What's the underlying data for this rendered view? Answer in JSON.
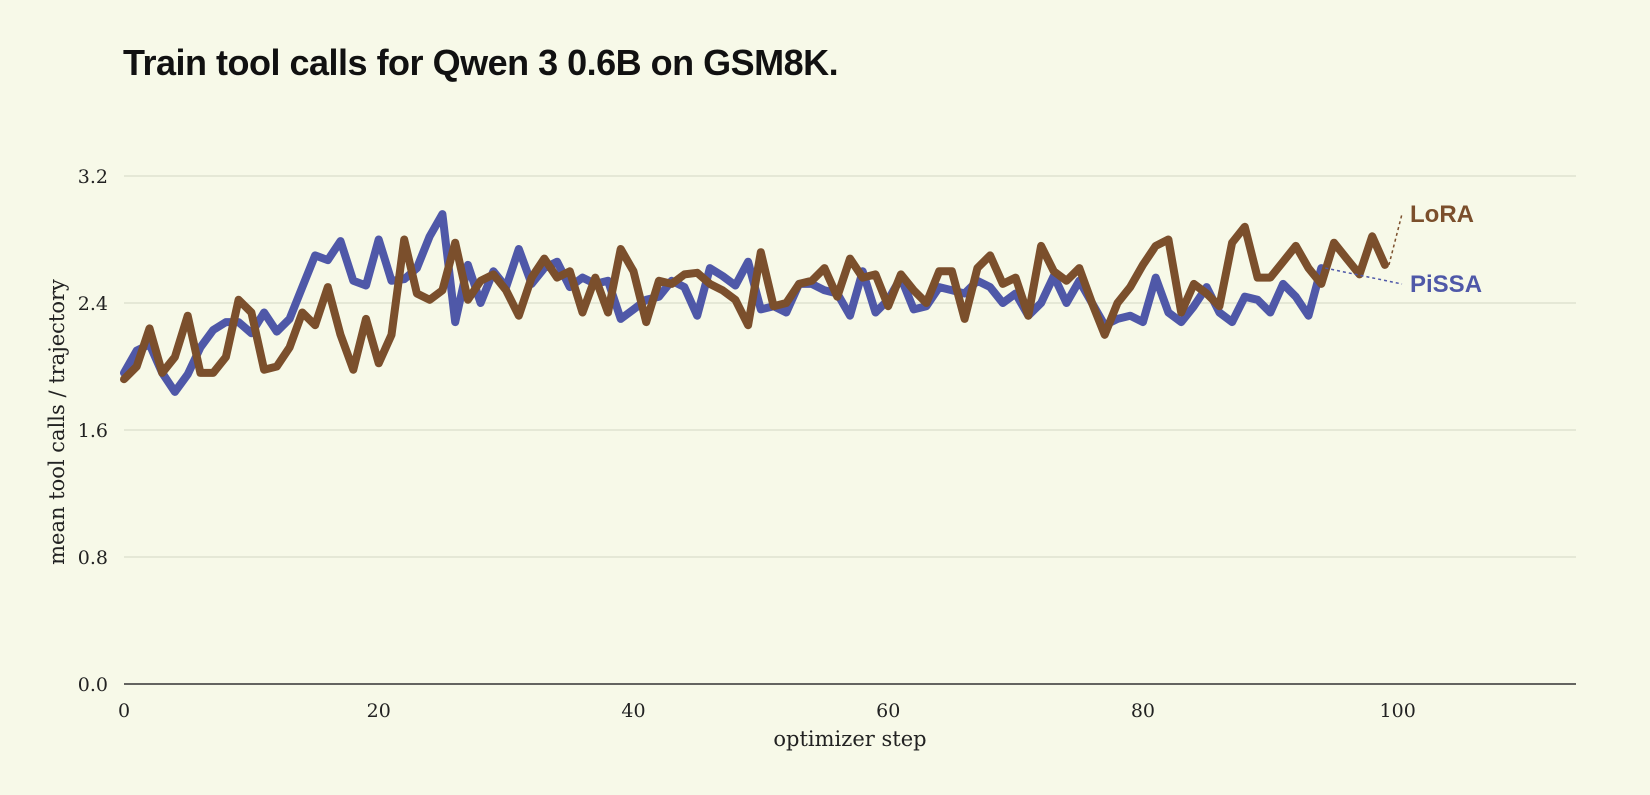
{
  "chart_data": {
    "type": "line",
    "title": "Train tool calls for Qwen 3 0.6B on GSM8K.",
    "xlabel": "optimizer step",
    "ylabel": "mean tool calls / trajectory",
    "xlim": [
      0,
      114
    ],
    "ylim": [
      0,
      3.2
    ],
    "xticks": [
      0,
      20,
      40,
      60,
      80,
      100
    ],
    "xtick_labels": [
      "0",
      "20",
      "40",
      "60",
      "80",
      "100"
    ],
    "yticks": [
      0,
      0.8,
      1.6,
      2.4,
      3.2
    ],
    "ytick_labels": [
      "0.0",
      "0.8",
      "1.6",
      "2.4",
      "3.2"
    ],
    "grid": true,
    "legend": "inline-right",
    "series": [
      {
        "name": "PiSSA",
        "color": "#4f58a8",
        "x": [
          0,
          1,
          2,
          3,
          4,
          5,
          6,
          7,
          8,
          9,
          10,
          11,
          12,
          13,
          14,
          15,
          16,
          17,
          18,
          19,
          20,
          21,
          22,
          23,
          24,
          25,
          26,
          27,
          28,
          29,
          30,
          31,
          32,
          33,
          34,
          35,
          36,
          37,
          38,
          39,
          40,
          41,
          42,
          43,
          44,
          45,
          46,
          47,
          48,
          49,
          50,
          51,
          52,
          53,
          54,
          55,
          56,
          57,
          58,
          59,
          60,
          61,
          62,
          63,
          64,
          65,
          66,
          67,
          68,
          69,
          70,
          71,
          72,
          73,
          74,
          75,
          76,
          77,
          78,
          79,
          80,
          81,
          82,
          83,
          84,
          85,
          86,
          87,
          88,
          89,
          90,
          91,
          92,
          93,
          94
        ],
        "y": [
          1.96,
          2.1,
          2.14,
          1.96,
          1.84,
          1.95,
          2.12,
          2.23,
          2.28,
          2.28,
          2.21,
          2.34,
          2.22,
          2.3,
          2.5,
          2.7,
          2.67,
          2.79,
          2.54,
          2.51,
          2.8,
          2.54,
          2.55,
          2.62,
          2.82,
          2.96,
          2.28,
          2.64,
          2.4,
          2.6,
          2.5,
          2.74,
          2.52,
          2.62,
          2.66,
          2.5,
          2.56,
          2.52,
          2.54,
          2.3,
          2.36,
          2.42,
          2.44,
          2.54,
          2.5,
          2.32,
          2.62,
          2.57,
          2.51,
          2.66,
          2.36,
          2.38,
          2.34,
          2.52,
          2.52,
          2.48,
          2.46,
          2.32,
          2.6,
          2.34,
          2.42,
          2.56,
          2.36,
          2.38,
          2.5,
          2.48,
          2.46,
          2.54,
          2.5,
          2.4,
          2.46,
          2.32,
          2.4,
          2.57,
          2.4,
          2.54,
          2.4,
          2.26,
          2.3,
          2.32,
          2.28,
          2.56,
          2.34,
          2.28,
          2.38,
          2.5,
          2.34,
          2.28,
          2.44,
          2.42,
          2.34,
          2.52,
          2.44,
          2.32,
          2.62
        ]
      },
      {
        "name": "LoRA",
        "color": "#7b4f2c",
        "x": [
          0,
          1,
          2,
          3,
          4,
          5,
          6,
          7,
          8,
          9,
          10,
          11,
          12,
          13,
          14,
          15,
          16,
          17,
          18,
          19,
          20,
          21,
          22,
          23,
          24,
          25,
          26,
          27,
          28,
          29,
          30,
          31,
          32,
          33,
          34,
          35,
          36,
          37,
          38,
          39,
          40,
          41,
          42,
          43,
          44,
          45,
          46,
          47,
          48,
          49,
          50,
          51,
          52,
          53,
          54,
          55,
          56,
          57,
          58,
          59,
          60,
          61,
          62,
          63,
          64,
          65,
          66,
          67,
          68,
          69,
          70,
          71,
          72,
          73,
          74,
          75,
          76,
          77,
          78,
          79,
          80,
          81,
          82,
          83,
          84,
          85,
          86,
          87,
          88,
          89,
          90,
          91,
          92,
          93,
          94,
          95,
          96,
          97,
          98,
          99
        ],
        "y": [
          1.92,
          2.0,
          2.24,
          1.96,
          2.06,
          2.32,
          1.96,
          1.96,
          2.06,
          2.42,
          2.34,
          1.98,
          2.0,
          2.12,
          2.34,
          2.26,
          2.5,
          2.2,
          1.98,
          2.3,
          2.02,
          2.2,
          2.8,
          2.46,
          2.42,
          2.48,
          2.78,
          2.42,
          2.54,
          2.58,
          2.48,
          2.32,
          2.56,
          2.68,
          2.56,
          2.6,
          2.34,
          2.56,
          2.34,
          2.74,
          2.6,
          2.28,
          2.54,
          2.52,
          2.58,
          2.59,
          2.52,
          2.48,
          2.42,
          2.26,
          2.72,
          2.38,
          2.4,
          2.52,
          2.54,
          2.62,
          2.44,
          2.68,
          2.56,
          2.58,
          2.38,
          2.58,
          2.48,
          2.4,
          2.6,
          2.6,
          2.3,
          2.62,
          2.7,
          2.52,
          2.56,
          2.32,
          2.76,
          2.6,
          2.54,
          2.62,
          2.4,
          2.2,
          2.4,
          2.5,
          2.64,
          2.76,
          2.8,
          2.34,
          2.52,
          2.46,
          2.38,
          2.78,
          2.88,
          2.56,
          2.56,
          2.66,
          2.76,
          2.62,
          2.52,
          2.78,
          2.68,
          2.58,
          2.82,
          2.64
        ]
      }
    ]
  }
}
